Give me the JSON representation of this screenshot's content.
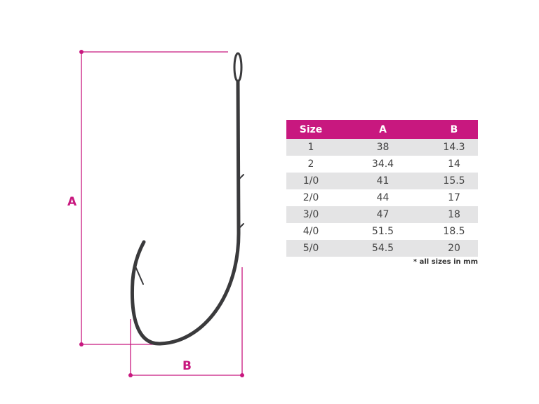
{
  "labels": {
    "a": "A",
    "b": "B"
  },
  "colors": {
    "accent": "#c8187f",
    "row_alt": "#e4e4e5",
    "hook": "#3a3a3c"
  },
  "table": {
    "headers": [
      "Size",
      "A",
      "B"
    ],
    "rows": [
      [
        "1",
        "38",
        "14.3"
      ],
      [
        "2",
        "34.4",
        "14"
      ],
      [
        "1/0",
        "41",
        "15.5"
      ],
      [
        "2/0",
        "44",
        "17"
      ],
      [
        "3/0",
        "47",
        "18"
      ],
      [
        "4/0",
        "51.5",
        "18.5"
      ],
      [
        "5/0",
        "54.5",
        "20"
      ]
    ],
    "footnote": "* all sizes in mm"
  }
}
